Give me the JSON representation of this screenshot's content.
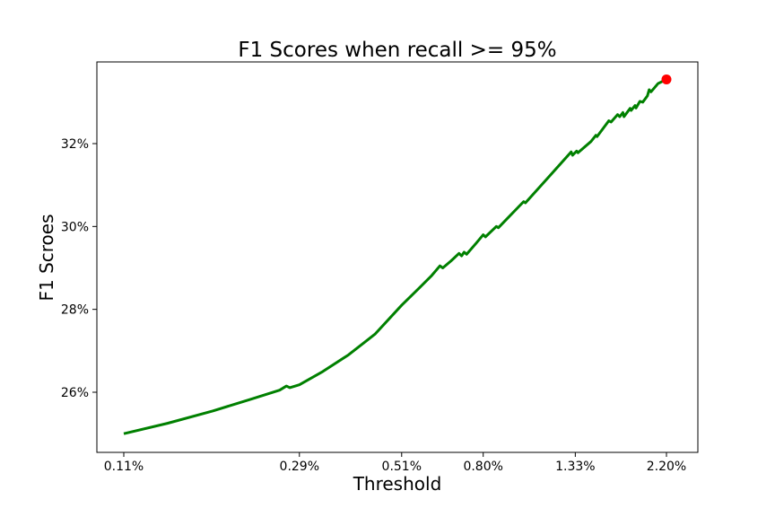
{
  "chart_data": {
    "type": "line",
    "title": "F1 Scores when recall >= 95%",
    "xlabel": "Threshold",
    "ylabel": "F1 Scroes",
    "x_ticks": [
      "0.11%",
      "0.29%",
      "0.51%",
      "0.80%",
      "1.33%",
      "2.20%"
    ],
    "y_ticks": [
      26,
      28,
      30,
      32
    ],
    "y_tick_labels": [
      "26%",
      "28%",
      "30%",
      "32%"
    ],
    "ylim": [
      24.5,
      34.5
    ],
    "grid": false,
    "series_color": "#008000",
    "highlight_color": "#ff0000",
    "series": [
      {
        "points": [
          [
            0.11,
            25.0
          ],
          [
            0.14,
            25.25
          ],
          [
            0.18,
            25.55
          ],
          [
            0.22,
            25.82
          ],
          [
            0.26,
            26.05
          ],
          [
            0.27,
            26.15
          ],
          [
            0.275,
            26.11
          ],
          [
            0.29,
            26.18
          ],
          [
            0.33,
            26.5
          ],
          [
            0.38,
            26.9
          ],
          [
            0.44,
            27.4
          ],
          [
            0.51,
            28.1
          ],
          [
            0.56,
            28.5
          ],
          [
            0.6,
            28.8
          ],
          [
            0.63,
            29.05
          ],
          [
            0.64,
            29.0
          ],
          [
            0.67,
            29.17
          ],
          [
            0.7,
            29.35
          ],
          [
            0.71,
            29.29
          ],
          [
            0.72,
            29.38
          ],
          [
            0.73,
            29.33
          ],
          [
            0.77,
            29.6
          ],
          [
            0.8,
            29.8
          ],
          [
            0.81,
            29.75
          ],
          [
            0.86,
            30.0
          ],
          [
            0.87,
            29.97
          ],
          [
            1.0,
            30.6
          ],
          [
            1.01,
            30.57
          ],
          [
            1.15,
            31.2
          ],
          [
            1.3,
            31.8
          ],
          [
            1.31,
            31.72
          ],
          [
            1.34,
            31.82
          ],
          [
            1.35,
            31.78
          ],
          [
            1.45,
            32.05
          ],
          [
            1.49,
            32.2
          ],
          [
            1.5,
            32.17
          ],
          [
            1.6,
            32.55
          ],
          [
            1.62,
            32.52
          ],
          [
            1.68,
            32.7
          ],
          [
            1.7,
            32.65
          ],
          [
            1.73,
            32.75
          ],
          [
            1.74,
            32.65
          ],
          [
            1.8,
            32.85
          ],
          [
            1.81,
            32.8
          ],
          [
            1.85,
            32.92
          ],
          [
            1.86,
            32.86
          ],
          [
            1.9,
            33.02
          ],
          [
            1.93,
            33.0
          ],
          [
            1.98,
            33.15
          ],
          [
            2.0,
            33.3
          ],
          [
            2.02,
            33.25
          ],
          [
            2.1,
            33.45
          ],
          [
            2.2,
            33.55
          ]
        ]
      }
    ],
    "highlight": {
      "x": 2.2,
      "y": 33.55
    }
  }
}
